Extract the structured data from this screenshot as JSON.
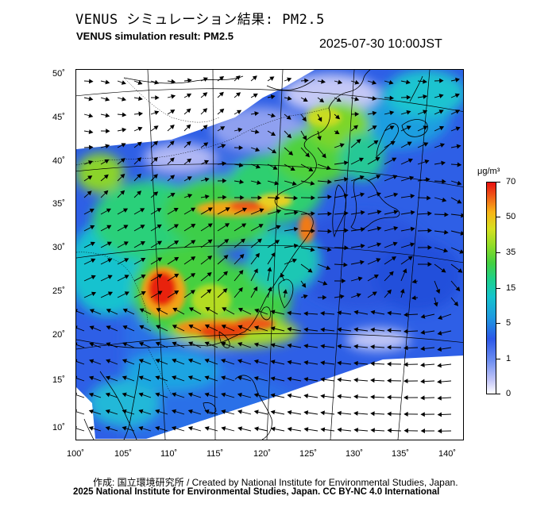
{
  "header": {
    "title_jp": "VENUS シミュレーション結果: PM2.5",
    "title_en": "VENUS simulation result: PM2.5",
    "timestamp": "2025-07-30 10:00JST"
  },
  "map": {
    "lat_labels": [
      "50˚",
      "45˚",
      "40˚",
      "35˚",
      "30˚",
      "25˚",
      "20˚",
      "15˚",
      "10˚"
    ],
    "lon_labels": [
      "100˚",
      "105˚",
      "110˚",
      "115˚",
      "120˚",
      "125˚",
      "130˚",
      "135˚",
      "140˚"
    ],
    "region": "East Asia",
    "layer": "PM2.5 concentration with wind vectors"
  },
  "colorbar": {
    "unit": "μg/m³",
    "labels": [
      "70",
      "50",
      "35",
      "15",
      "5",
      "1",
      "0"
    ],
    "colors": {
      "low": "#ffffff",
      "light_blue": "#c6c8f8",
      "blue": "#2c58e8",
      "cyan": "#15c4cc",
      "green": "#45d040",
      "yellow": "#d6e020",
      "orange": "#f06018",
      "red": "#e81010"
    }
  },
  "footer": {
    "credit_line": "作成: 国立環境研究所 / Created by National Institute for Environmental Studies, Japan.",
    "copyright_line": "2025 National Institute for Environmental Studies, Japan. CC BY-NC 4.0 International"
  }
}
